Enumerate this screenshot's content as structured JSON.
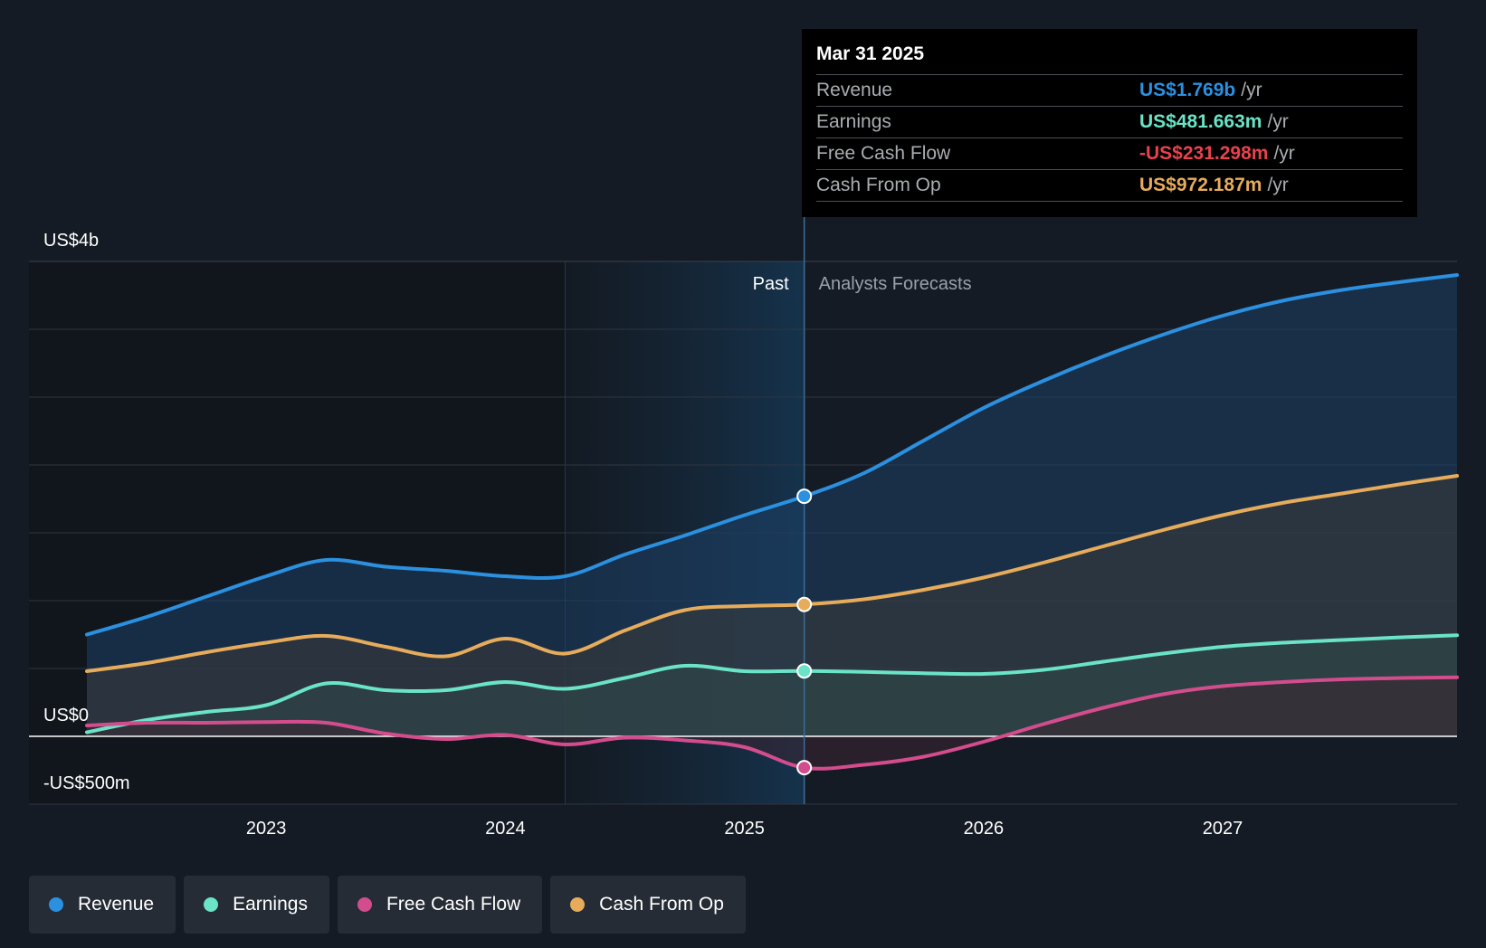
{
  "chart_data": {
    "type": "area",
    "y_axis": {
      "top_label": "US$4b",
      "zero_label": "US$0",
      "bottom_label": "-US$500m",
      "ylim_millions": [
        -500,
        3500
      ],
      "gridlines_millions": [
        -500,
        0,
        500,
        1000,
        1500,
        2000,
        2500,
        3000,
        3500
      ]
    },
    "x_axis": {
      "ticks": [
        "2023",
        "2024",
        "2025",
        "2026",
        "2027"
      ],
      "xlim": [
        2022.25,
        2027.98
      ]
    },
    "regions": {
      "past_label": "Past",
      "forecast_label": "Analysts Forecasts",
      "divider_x": 2025.25,
      "highlight_start_x": 2024.25
    },
    "series": [
      {
        "name": "Revenue",
        "color": "#2b90e0",
        "fill": "#1e3f66",
        "points": [
          [
            2022.25,
            750
          ],
          [
            2022.5,
            880
          ],
          [
            2022.75,
            1030
          ],
          [
            2023.0,
            1180
          ],
          [
            2023.25,
            1300
          ],
          [
            2023.5,
            1250
          ],
          [
            2023.75,
            1220
          ],
          [
            2024.0,
            1180
          ],
          [
            2024.25,
            1180
          ],
          [
            2024.5,
            1340
          ],
          [
            2024.75,
            1480
          ],
          [
            2025.0,
            1630
          ],
          [
            2025.25,
            1769
          ],
          [
            2025.5,
            1940
          ],
          [
            2025.75,
            2180
          ],
          [
            2026.0,
            2420
          ],
          [
            2026.25,
            2620
          ],
          [
            2026.5,
            2800
          ],
          [
            2026.75,
            2960
          ],
          [
            2027.0,
            3100
          ],
          [
            2027.25,
            3210
          ],
          [
            2027.5,
            3290
          ],
          [
            2027.75,
            3350
          ],
          [
            2027.98,
            3400
          ]
        ]
      },
      {
        "name": "Cash From Op",
        "color": "#e6ac5c",
        "fill": "#3a3a38",
        "points": [
          [
            2022.25,
            480
          ],
          [
            2022.5,
            540
          ],
          [
            2022.75,
            620
          ],
          [
            2023.0,
            690
          ],
          [
            2023.25,
            740
          ],
          [
            2023.5,
            660
          ],
          [
            2023.75,
            590
          ],
          [
            2024.0,
            720
          ],
          [
            2024.25,
            610
          ],
          [
            2024.5,
            780
          ],
          [
            2024.75,
            930
          ],
          [
            2025.0,
            960
          ],
          [
            2025.25,
            972
          ],
          [
            2025.5,
            1010
          ],
          [
            2025.75,
            1080
          ],
          [
            2026.0,
            1170
          ],
          [
            2026.25,
            1280
          ],
          [
            2026.5,
            1400
          ],
          [
            2026.75,
            1520
          ],
          [
            2027.0,
            1630
          ],
          [
            2027.25,
            1720
          ],
          [
            2027.5,
            1790
          ],
          [
            2027.75,
            1860
          ],
          [
            2027.98,
            1920
          ]
        ]
      },
      {
        "name": "Earnings",
        "color": "#6ae3c7",
        "fill": "#2f4948",
        "points": [
          [
            2022.25,
            30
          ],
          [
            2022.5,
            120
          ],
          [
            2022.75,
            180
          ],
          [
            2023.0,
            230
          ],
          [
            2023.25,
            390
          ],
          [
            2023.5,
            340
          ],
          [
            2023.75,
            340
          ],
          [
            2024.0,
            400
          ],
          [
            2024.25,
            350
          ],
          [
            2024.5,
            430
          ],
          [
            2024.75,
            520
          ],
          [
            2025.0,
            480
          ],
          [
            2025.25,
            482
          ],
          [
            2025.5,
            475
          ],
          [
            2025.75,
            465
          ],
          [
            2026.0,
            460
          ],
          [
            2026.25,
            490
          ],
          [
            2026.5,
            550
          ],
          [
            2026.75,
            610
          ],
          [
            2027.0,
            660
          ],
          [
            2027.25,
            690
          ],
          [
            2027.5,
            710
          ],
          [
            2027.75,
            730
          ],
          [
            2027.98,
            745
          ]
        ]
      },
      {
        "name": "Free Cash Flow",
        "color": "#d34d8e",
        "fill": "#3a2432",
        "points": [
          [
            2022.25,
            80
          ],
          [
            2022.5,
            100
          ],
          [
            2022.75,
            100
          ],
          [
            2023.0,
            105
          ],
          [
            2023.25,
            100
          ],
          [
            2023.5,
            20
          ],
          [
            2023.75,
            -20
          ],
          [
            2024.0,
            10
          ],
          [
            2024.25,
            -60
          ],
          [
            2024.5,
            -10
          ],
          [
            2024.75,
            -30
          ],
          [
            2025.0,
            -80
          ],
          [
            2025.25,
            -231
          ],
          [
            2025.5,
            -210
          ],
          [
            2025.75,
            -150
          ],
          [
            2026.0,
            -40
          ],
          [
            2026.25,
            90
          ],
          [
            2026.5,
            210
          ],
          [
            2026.75,
            310
          ],
          [
            2027.0,
            370
          ],
          [
            2027.25,
            400
          ],
          [
            2027.5,
            420
          ],
          [
            2027.75,
            430
          ],
          [
            2027.98,
            435
          ]
        ]
      }
    ]
  },
  "tooltip": {
    "date": "Mar 31 2025",
    "rows": [
      {
        "name": "Revenue",
        "value": "US$1.769b",
        "unit": "/yr",
        "color": "#2b90e0"
      },
      {
        "name": "Earnings",
        "value": "US$481.663m",
        "unit": "/yr",
        "color": "#6ae3c7"
      },
      {
        "name": "Free Cash Flow",
        "value": "-US$231.298m",
        "unit": "/yr",
        "color": "#e8424d"
      },
      {
        "name": "Cash From Op",
        "value": "US$972.187m",
        "unit": "/yr",
        "color": "#e6ac5c"
      }
    ]
  },
  "legend": [
    {
      "label": "Revenue",
      "color": "#2b90e0"
    },
    {
      "label": "Earnings",
      "color": "#6ae3c7"
    },
    {
      "label": "Free Cash Flow",
      "color": "#d34d8e"
    },
    {
      "label": "Cash From Op",
      "color": "#e6ac5c"
    }
  ],
  "colors": {
    "background": "#151b24",
    "gridline": "#2e3540",
    "zero_line": "#ffffff",
    "past_text": "#ffffff",
    "forecast_text": "#9aa0a8"
  }
}
